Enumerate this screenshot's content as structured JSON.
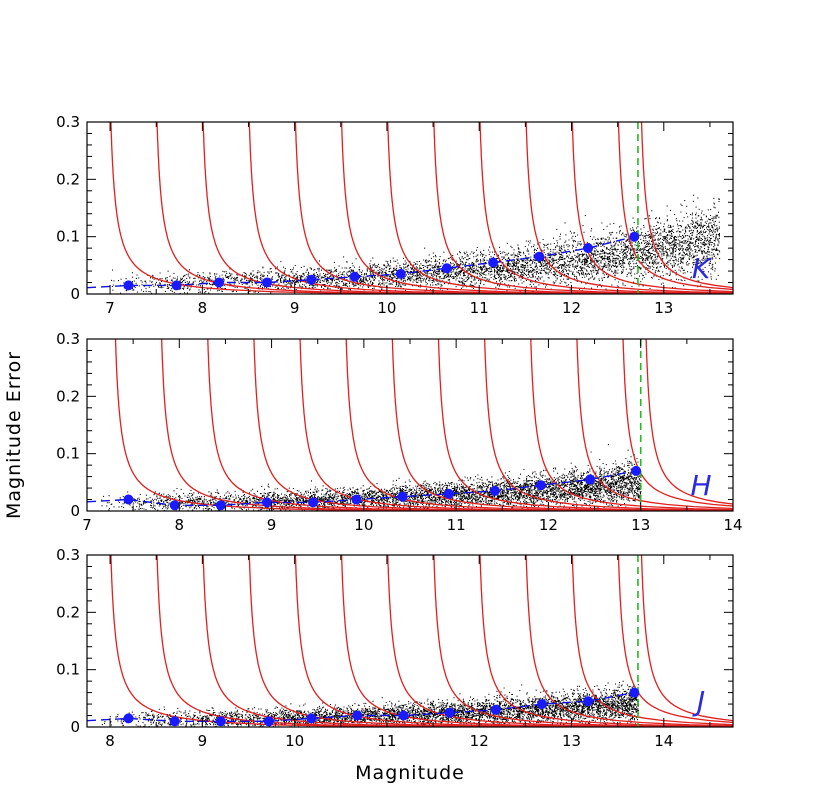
{
  "figure": {
    "xlabel": "Magnitude",
    "ylabel": "Magnitude Error"
  },
  "colors": {
    "scatter": "#000000",
    "completeness_curve": "#e02020",
    "fit_line": "#1010e0",
    "points": "#1a1aff",
    "limit_line": "#22bb22",
    "band_label": "#2a2ae0"
  },
  "chart_data": [
    {
      "type": "scatter",
      "band": "K",
      "xlim": [
        6.75,
        13.75
      ],
      "ylim": [
        0,
        0.3
      ],
      "xticks": [
        7,
        8,
        9,
        10,
        11,
        12,
        13
      ],
      "yticks": [
        0,
        0.1,
        0.2,
        0.3
      ],
      "ytick_labels": [
        "0",
        "0.1",
        "0.2",
        "0.3"
      ],
      "limit_magnitude": 12.72,
      "points": {
        "x": [
          7.2,
          7.72,
          8.18,
          8.7,
          9.18,
          9.65,
          10.15,
          10.65,
          11.15,
          11.65,
          12.18,
          12.68
        ],
        "y": [
          0.015,
          0.015,
          0.02,
          0.02,
          0.025,
          0.03,
          0.035,
          0.045,
          0.055,
          0.065,
          0.08,
          0.1
        ]
      },
      "curves_center": [
        7.0,
        7.5,
        8.0,
        8.5,
        9.0,
        9.5,
        10.0,
        10.5,
        11.0,
        11.5,
        12.0,
        12.5,
        12.75
      ],
      "cloud": {
        "x0": 6.9,
        "x1": 13.6,
        "a": 0.012,
        "b": 0.0052,
        "c": 0.42
      }
    },
    {
      "type": "scatter",
      "band": "H",
      "xlim": [
        7,
        14
      ],
      "ylim": [
        0,
        0.3
      ],
      "xticks": [
        7,
        8,
        9,
        10,
        11,
        12,
        13,
        14
      ],
      "yticks": [
        0,
        0.1,
        0.2,
        0.3
      ],
      "ytick_labels": [
        "0",
        "0.1",
        "0.2",
        "0.3"
      ],
      "limit_magnitude": 13.0,
      "points": {
        "x": [
          7.45,
          7.95,
          8.45,
          8.95,
          9.45,
          9.92,
          10.42,
          10.92,
          11.42,
          11.92,
          12.45,
          12.95
        ],
        "y": [
          0.02,
          0.01,
          0.01,
          0.015,
          0.015,
          0.02,
          0.025,
          0.03,
          0.035,
          0.045,
          0.055,
          0.07
        ]
      },
      "curves_center": [
        7.3,
        7.8,
        8.3,
        8.8,
        9.3,
        9.8,
        10.3,
        10.8,
        11.3,
        11.8,
        12.3,
        12.8,
        13.05
      ],
      "cloud": {
        "x0": 7.1,
        "x1": 13.0,
        "a": 0.01,
        "b": 0.0034,
        "c": 0.42
      }
    },
    {
      "type": "scatter",
      "band": "J",
      "xlim": [
        7.75,
        14.75
      ],
      "ylim": [
        0,
        0.3
      ],
      "xticks": [
        8,
        9,
        10,
        11,
        12,
        13,
        14
      ],
      "yticks": [
        0,
        0.1,
        0.2,
        0.3
      ],
      "ytick_labels": [
        "0",
        "0.1",
        "0.2",
        "0.3"
      ],
      "limit_magnitude": 13.72,
      "points": {
        "x": [
          8.2,
          8.7,
          9.2,
          9.72,
          10.18,
          10.68,
          11.18,
          11.68,
          12.18,
          12.68,
          13.18,
          13.68
        ],
        "y": [
          0.015,
          0.01,
          0.01,
          0.01,
          0.015,
          0.02,
          0.02,
          0.025,
          0.03,
          0.04,
          0.045,
          0.06
        ]
      },
      "curves_center": [
        8.0,
        8.5,
        9.0,
        9.5,
        10.0,
        10.5,
        11.0,
        11.5,
        12.0,
        12.5,
        13.0,
        13.5,
        13.75
      ],
      "cloud": {
        "x0": 7.9,
        "x1": 13.72,
        "a": 0.01,
        "b": 0.0027,
        "c": 0.42
      }
    }
  ]
}
